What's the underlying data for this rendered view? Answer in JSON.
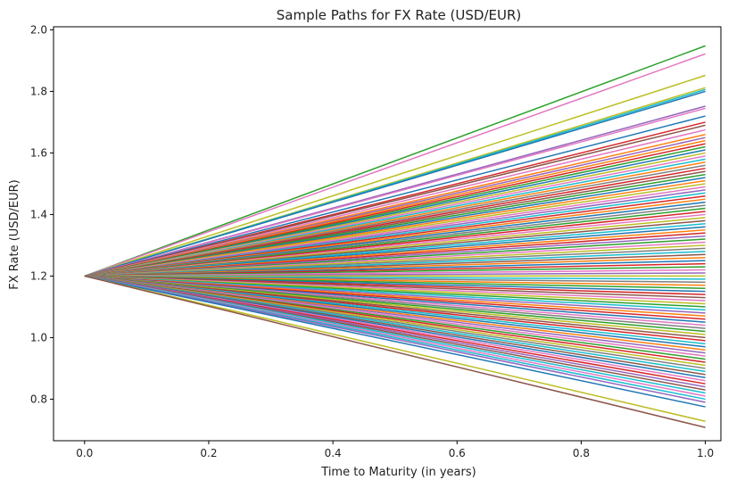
{
  "chart_data": {
    "type": "line",
    "title": "Sample Paths for FX Rate (USD/EUR)",
    "xlabel": "Time to Maturity (in years)",
    "ylabel": "FX Rate (USD/EUR)",
    "xlim": [
      -0.05,
      1.025
    ],
    "ylim": [
      0.665,
      2.01
    ],
    "xticks": [
      0.0,
      0.2,
      0.4,
      0.6,
      0.8,
      1.0
    ],
    "xtick_labels": [
      "0.0",
      "0.2",
      "0.4",
      "0.6",
      "0.8",
      "1.0"
    ],
    "yticks": [
      0.8,
      1.0,
      1.2,
      1.4,
      1.6,
      1.8,
      2.0
    ],
    "ytick_labels": [
      "0.8",
      "1.0",
      "1.2",
      "1.4",
      "1.6",
      "1.8",
      "2.0"
    ],
    "grid": false,
    "legend": "none",
    "start": {
      "x": 0.0,
      "y": 1.2
    },
    "end_x": 1.0,
    "series_colors": [
      "#1f77b4",
      "#ff7f0e",
      "#2ca02c",
      "#d62728",
      "#9467bd",
      "#8c564b",
      "#e377c2",
      "#7f7f7f",
      "#bcbd22",
      "#17becf"
    ],
    "series": [
      {
        "x": [
          0.0,
          1.0
        ],
        "y": [
          1.2,
          1.948
        ],
        "color": "#2ca02c"
      },
      {
        "x": [
          0.0,
          1.0
        ],
        "y": [
          1.2,
          1.922
        ],
        "color": "#e377c2"
      },
      {
        "x": [
          0.0,
          1.0
        ],
        "y": [
          1.2,
          1.852
        ],
        "color": "#bcbd22"
      },
      {
        "x": [
          0.0,
          1.0
        ],
        "y": [
          1.2,
          1.812
        ],
        "color": "#bcbd22"
      },
      {
        "x": [
          0.0,
          1.0
        ],
        "y": [
          1.2,
          1.806
        ],
        "color": "#17becf"
      },
      {
        "x": [
          0.0,
          1.0
        ],
        "y": [
          1.2,
          1.8
        ],
        "color": "#1f77b4"
      },
      {
        "x": [
          0.0,
          1.0
        ],
        "y": [
          1.2,
          1.752
        ],
        "color": "#9467bd"
      },
      {
        "x": [
          0.0,
          1.0
        ],
        "y": [
          1.2,
          1.745
        ],
        "color": "#e377c2"
      },
      {
        "x": [
          0.0,
          1.0
        ],
        "y": [
          1.2,
          1.72
        ],
        "color": "#1f77b4"
      },
      {
        "x": [
          0.0,
          1.0
        ],
        "y": [
          1.2,
          1.7
        ],
        "color": "#d62728"
      },
      {
        "x": [
          0.0,
          1.0
        ],
        "y": [
          1.2,
          1.69
        ],
        "color": "#8c564b"
      },
      {
        "x": [
          0.0,
          1.0
        ],
        "y": [
          1.2,
          1.675
        ],
        "color": "#e377c2"
      },
      {
        "x": [
          0.0,
          1.0
        ],
        "y": [
          1.2,
          1.66
        ],
        "color": "#ff7f0e"
      },
      {
        "x": [
          0.0,
          1.0
        ],
        "y": [
          1.2,
          1.65
        ],
        "color": "#9467bd"
      },
      {
        "x": [
          0.0,
          1.0
        ],
        "y": [
          1.2,
          1.64
        ],
        "color": "#ff7f0e"
      },
      {
        "x": [
          0.0,
          1.0
        ],
        "y": [
          1.2,
          1.63
        ],
        "color": "#d62728"
      },
      {
        "x": [
          0.0,
          1.0
        ],
        "y": [
          1.2,
          1.62
        ],
        "color": "#2ca02c"
      },
      {
        "x": [
          0.0,
          1.0
        ],
        "y": [
          1.2,
          1.61
        ],
        "color": "#1f77b4"
      },
      {
        "x": [
          0.0,
          1.0
        ],
        "y": [
          1.2,
          1.6
        ],
        "color": "#bcbd22"
      },
      {
        "x": [
          0.0,
          1.0
        ],
        "y": [
          1.2,
          1.59
        ],
        "color": "#e377c2"
      },
      {
        "x": [
          0.0,
          1.0
        ],
        "y": [
          1.2,
          1.58
        ],
        "color": "#17becf"
      },
      {
        "x": [
          0.0,
          1.0
        ],
        "y": [
          1.2,
          1.57
        ],
        "color": "#ff7f0e"
      },
      {
        "x": [
          0.0,
          1.0
        ],
        "y": [
          1.2,
          1.56
        ],
        "color": "#7f7f7f"
      },
      {
        "x": [
          0.0,
          1.0
        ],
        "y": [
          1.2,
          1.55
        ],
        "color": "#d62728"
      },
      {
        "x": [
          0.0,
          1.0
        ],
        "y": [
          1.2,
          1.54
        ],
        "color": "#8c564b"
      },
      {
        "x": [
          0.0,
          1.0
        ],
        "y": [
          1.2,
          1.53
        ],
        "color": "#2ca02c"
      },
      {
        "x": [
          0.0,
          1.0
        ],
        "y": [
          1.2,
          1.52
        ],
        "color": "#1f77b4"
      },
      {
        "x": [
          0.0,
          1.0
        ],
        "y": [
          1.2,
          1.51
        ],
        "color": "#ff7f0e"
      },
      {
        "x": [
          0.0,
          1.0
        ],
        "y": [
          1.2,
          1.5
        ],
        "color": "#bcbd22"
      },
      {
        "x": [
          0.0,
          1.0
        ],
        "y": [
          1.2,
          1.49
        ],
        "color": "#e377c2"
      },
      {
        "x": [
          0.0,
          1.0
        ],
        "y": [
          1.2,
          1.48
        ],
        "color": "#9467bd"
      },
      {
        "x": [
          0.0,
          1.0
        ],
        "y": [
          1.2,
          1.47
        ],
        "color": "#17becf"
      },
      {
        "x": [
          0.0,
          1.0
        ],
        "y": [
          1.2,
          1.46
        ],
        "color": "#d62728"
      },
      {
        "x": [
          0.0,
          1.0
        ],
        "y": [
          1.2,
          1.45
        ],
        "color": "#ff7f0e"
      },
      {
        "x": [
          0.0,
          1.0
        ],
        "y": [
          1.2,
          1.44
        ],
        "color": "#1f77b4"
      },
      {
        "x": [
          0.0,
          1.0
        ],
        "y": [
          1.2,
          1.43
        ],
        "color": "#7f7f7f"
      },
      {
        "x": [
          0.0,
          1.0
        ],
        "y": [
          1.2,
          1.42
        ],
        "color": "#2ca02c"
      },
      {
        "x": [
          0.0,
          1.0
        ],
        "y": [
          1.2,
          1.41
        ],
        "color": "#d62728"
      },
      {
        "x": [
          0.0,
          1.0
        ],
        "y": [
          1.2,
          1.4
        ],
        "color": "#e377c2"
      },
      {
        "x": [
          0.0,
          1.0
        ],
        "y": [
          1.2,
          1.39
        ],
        "color": "#bcbd22"
      },
      {
        "x": [
          0.0,
          1.0
        ],
        "y": [
          1.2,
          1.38
        ],
        "color": "#8c564b"
      },
      {
        "x": [
          0.0,
          1.0
        ],
        "y": [
          1.2,
          1.37
        ],
        "color": "#17becf"
      },
      {
        "x": [
          0.0,
          1.0
        ],
        "y": [
          1.2,
          1.36
        ],
        "color": "#1f77b4"
      },
      {
        "x": [
          0.0,
          1.0
        ],
        "y": [
          1.2,
          1.35
        ],
        "color": "#ff7f0e"
      },
      {
        "x": [
          0.0,
          1.0
        ],
        "y": [
          1.2,
          1.34
        ],
        "color": "#d62728"
      },
      {
        "x": [
          0.0,
          1.0
        ],
        "y": [
          1.2,
          1.33
        ],
        "color": "#9467bd"
      },
      {
        "x": [
          0.0,
          1.0
        ],
        "y": [
          1.2,
          1.32
        ],
        "color": "#2ca02c"
      },
      {
        "x": [
          0.0,
          1.0
        ],
        "y": [
          1.2,
          1.31
        ],
        "color": "#e377c2"
      },
      {
        "x": [
          0.0,
          1.0
        ],
        "y": [
          1.2,
          1.3
        ],
        "color": "#bcbd22"
      },
      {
        "x": [
          0.0,
          1.0
        ],
        "y": [
          1.2,
          1.29
        ],
        "color": "#7f7f7f"
      },
      {
        "x": [
          0.0,
          1.0
        ],
        "y": [
          1.2,
          1.28
        ],
        "color": "#17becf"
      },
      {
        "x": [
          0.0,
          1.0
        ],
        "y": [
          1.2,
          1.27
        ],
        "color": "#8c564b"
      },
      {
        "x": [
          0.0,
          1.0
        ],
        "y": [
          1.2,
          1.26
        ],
        "color": "#ff7f0e"
      },
      {
        "x": [
          0.0,
          1.0
        ],
        "y": [
          1.2,
          1.25
        ],
        "color": "#1f77b4"
      },
      {
        "x": [
          0.0,
          1.0
        ],
        "y": [
          1.2,
          1.24
        ],
        "color": "#d62728"
      },
      {
        "x": [
          0.0,
          1.0
        ],
        "y": [
          1.2,
          1.23
        ],
        "color": "#2ca02c"
      },
      {
        "x": [
          0.0,
          1.0
        ],
        "y": [
          1.2,
          1.22
        ],
        "color": "#e377c2"
      },
      {
        "x": [
          0.0,
          1.0
        ],
        "y": [
          1.2,
          1.21
        ],
        "color": "#9467bd"
      },
      {
        "x": [
          0.0,
          1.0
        ],
        "y": [
          1.2,
          1.2
        ],
        "color": "#bcbd22"
      },
      {
        "x": [
          0.0,
          1.0
        ],
        "y": [
          1.2,
          1.19
        ],
        "color": "#17becf"
      },
      {
        "x": [
          0.0,
          1.0
        ],
        "y": [
          1.2,
          1.18
        ],
        "color": "#7f7f7f"
      },
      {
        "x": [
          0.0,
          1.0
        ],
        "y": [
          1.2,
          1.17
        ],
        "color": "#ff7f0e"
      },
      {
        "x": [
          0.0,
          1.0
        ],
        "y": [
          1.2,
          1.16
        ],
        "color": "#2ca02c"
      },
      {
        "x": [
          0.0,
          1.0
        ],
        "y": [
          1.2,
          1.15
        ],
        "color": "#1f77b4"
      },
      {
        "x": [
          0.0,
          1.0
        ],
        "y": [
          1.2,
          1.14
        ],
        "color": "#d62728"
      },
      {
        "x": [
          0.0,
          1.0
        ],
        "y": [
          1.2,
          1.13
        ],
        "color": "#8c564b"
      },
      {
        "x": [
          0.0,
          1.0
        ],
        "y": [
          1.2,
          1.12
        ],
        "color": "#e377c2"
      },
      {
        "x": [
          0.0,
          1.0
        ],
        "y": [
          1.2,
          1.11
        ],
        "color": "#bcbd22"
      },
      {
        "x": [
          0.0,
          1.0
        ],
        "y": [
          1.2,
          1.1
        ],
        "color": "#2ca02c"
      },
      {
        "x": [
          0.0,
          1.0
        ],
        "y": [
          1.2,
          1.09
        ],
        "color": "#17becf"
      },
      {
        "x": [
          0.0,
          1.0
        ],
        "y": [
          1.2,
          1.08
        ],
        "color": "#9467bd"
      },
      {
        "x": [
          0.0,
          1.0
        ],
        "y": [
          1.2,
          1.07
        ],
        "color": "#ff7f0e"
      },
      {
        "x": [
          0.0,
          1.0
        ],
        "y": [
          1.2,
          1.06
        ],
        "color": "#d62728"
      },
      {
        "x": [
          0.0,
          1.0
        ],
        "y": [
          1.2,
          1.05
        ],
        "color": "#1f77b4"
      },
      {
        "x": [
          0.0,
          1.0
        ],
        "y": [
          1.2,
          1.04
        ],
        "color": "#e377c2"
      },
      {
        "x": [
          0.0,
          1.0
        ],
        "y": [
          1.2,
          1.03
        ],
        "color": "#7f7f7f"
      },
      {
        "x": [
          0.0,
          1.0
        ],
        "y": [
          1.2,
          1.02
        ],
        "color": "#2ca02c"
      },
      {
        "x": [
          0.0,
          1.0
        ],
        "y": [
          1.2,
          1.01
        ],
        "color": "#bcbd22"
      },
      {
        "x": [
          0.0,
          1.0
        ],
        "y": [
          1.2,
          1.0
        ],
        "color": "#8c564b"
      },
      {
        "x": [
          0.0,
          1.0
        ],
        "y": [
          1.2,
          0.99
        ],
        "color": "#d62728"
      },
      {
        "x": [
          0.0,
          1.0
        ],
        "y": [
          1.2,
          0.98
        ],
        "color": "#17becf"
      },
      {
        "x": [
          0.0,
          1.0
        ],
        "y": [
          1.2,
          0.97
        ],
        "color": "#1f77b4"
      },
      {
        "x": [
          0.0,
          1.0
        ],
        "y": [
          1.2,
          0.96
        ],
        "color": "#ff7f0e"
      },
      {
        "x": [
          0.0,
          1.0
        ],
        "y": [
          1.2,
          0.95
        ],
        "color": "#9467bd"
      },
      {
        "x": [
          0.0,
          1.0
        ],
        "y": [
          1.2,
          0.94
        ],
        "color": "#e377c2"
      },
      {
        "x": [
          0.0,
          1.0
        ],
        "y": [
          1.2,
          0.93
        ],
        "color": "#2ca02c"
      },
      {
        "x": [
          0.0,
          1.0
        ],
        "y": [
          1.2,
          0.92
        ],
        "color": "#d62728"
      },
      {
        "x": [
          0.0,
          1.0
        ],
        "y": [
          1.2,
          0.91
        ],
        "color": "#bcbd22"
      },
      {
        "x": [
          0.0,
          1.0
        ],
        "y": [
          1.2,
          0.9
        ],
        "color": "#7f7f7f"
      },
      {
        "x": [
          0.0,
          1.0
        ],
        "y": [
          1.2,
          0.89
        ],
        "color": "#17becf"
      },
      {
        "x": [
          0.0,
          1.0
        ],
        "y": [
          1.2,
          0.88
        ],
        "color": "#8c564b"
      },
      {
        "x": [
          0.0,
          1.0
        ],
        "y": [
          1.2,
          0.87
        ],
        "color": "#1f77b4"
      },
      {
        "x": [
          0.0,
          1.0
        ],
        "y": [
          1.2,
          0.86
        ],
        "color": "#e377c2"
      },
      {
        "x": [
          0.0,
          1.0
        ],
        "y": [
          1.2,
          0.85
        ],
        "color": "#d62728"
      },
      {
        "x": [
          0.0,
          1.0
        ],
        "y": [
          1.2,
          0.84
        ],
        "color": "#9467bd"
      },
      {
        "x": [
          0.0,
          1.0
        ],
        "y": [
          1.2,
          0.83
        ],
        "color": "#8c564b"
      },
      {
        "x": [
          0.0,
          1.0
        ],
        "y": [
          1.2,
          0.82
        ],
        "color": "#17becf"
      },
      {
        "x": [
          0.0,
          1.0
        ],
        "y": [
          1.2,
          0.81
        ],
        "color": "#e377c2"
      },
      {
        "x": [
          0.0,
          1.0
        ],
        "y": [
          1.2,
          0.8
        ],
        "color": "#17becf"
      },
      {
        "x": [
          0.0,
          1.0
        ],
        "y": [
          1.2,
          0.79
        ],
        "color": "#9467bd"
      },
      {
        "x": [
          0.0,
          1.0
        ],
        "y": [
          1.2,
          0.775
        ],
        "color": "#1f77b4"
      },
      {
        "x": [
          0.0,
          1.0
        ],
        "y": [
          1.2,
          0.728
        ],
        "color": "#bcbd22"
      },
      {
        "x": [
          0.0,
          1.0
        ],
        "y": [
          1.2,
          0.708
        ],
        "color": "#8c564b"
      }
    ]
  }
}
